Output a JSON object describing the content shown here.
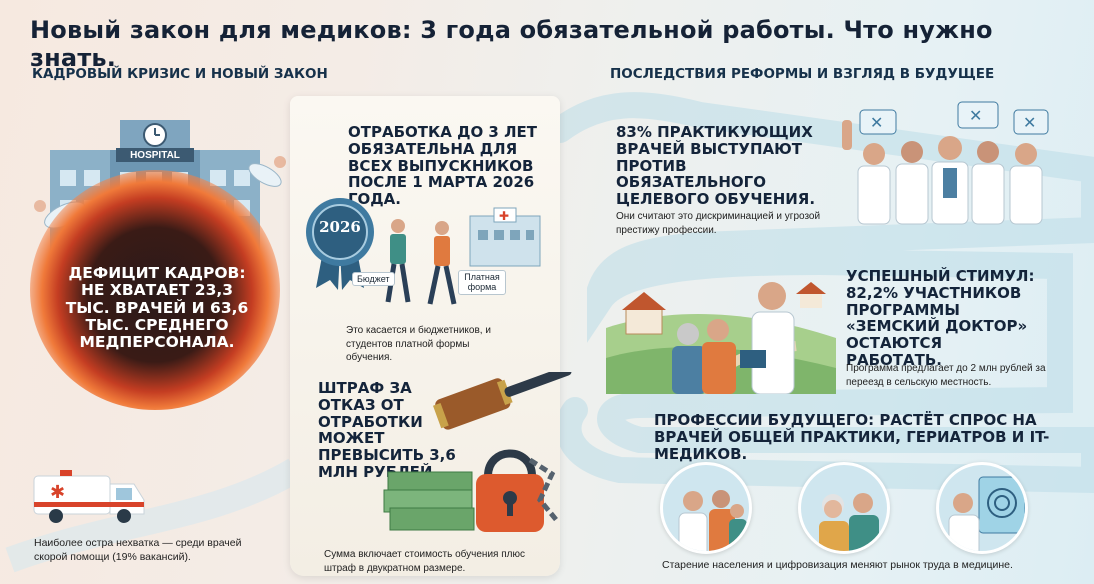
{
  "title": "Новый закон для медиков: 3 года обязательной работы. Что нужно знать.",
  "left_section": {
    "heading": "КАДРОВЫЙ КРИЗИС И НОВЫЙ ЗАКОН",
    "hospital_sign": "HOSPITAL",
    "deficit": "ДЕФИЦИТ КАДРОВ: НЕ ХВАТАЕТ 23,3 ТЫС. ВРАЧЕЙ И 63,6 ТЫС. СРЕДНЕГО МЕДПЕРСОНАЛА.",
    "ambulance_note": "Наиболее остра нехватка — среди врачей скорой помощи (19% вакансий)."
  },
  "center_section": {
    "obligation": "ОТРАБОТКА ДО 3 ЛЕТ ОБЯЗАТЕЛЬНА ДЛЯ ВСЕХ ВЫПУСКНИКОВ ПОСЛЕ 1 МАРТА 2026 ГОДА.",
    "year_badge": "2026",
    "label_budget": "Бюджет",
    "label_paid": "Платная форма",
    "applies_note": "Это касается и бюджетников, и студентов платной формы обучения.",
    "fine": "ШТРАФ ЗА ОТКАЗ ОТ ОТРАБОТКИ МОЖЕТ ПРЕВЫСИТЬ 3,6 МЛН РУБЛЕЙ.",
    "fine_note": "Сумма включает стоимость обучения плюс штраф в двукратном размере."
  },
  "right_section": {
    "heading": "ПОСЛЕДСТВИЯ РЕФОРМЫ И ВЗГЛЯД В БУДУЩЕЕ",
    "opposition": "83% ПРАКТИКУЮЩИХ ВРАЧЕЙ ВЫСТУПАЮТ ПРОТИВ ОБЯЗАТЕЛЬНОГО ЦЕЛЕВОГО ОБУЧЕНИЯ.",
    "opposition_note": "Они считают это дискриминацией и угрозой престижу профессии.",
    "stimulus": "УСПЕШНЫЙ СТИМУЛ: 82,2% УЧАСТНИКОВ ПРОГРАММЫ «ЗЕМСКИЙ ДОКТОР» ОСТАЮТСЯ РАБОТАТЬ.",
    "stimulus_note": "Программа предлагает до 2 млн рублей за переезд в сельскую местность.",
    "future": "ПРОФЕССИИ БУДУЩЕГО: РАСТЁТ СПРОС НА ВРАЧЕЙ ОБЩЕЙ ПРАКТИКИ, ГЕРИАТРОВ И IT-МЕДИКОВ.",
    "future_note": "Старение населения и цифровизация меняют рынок труда в медицине."
  },
  "colors": {
    "dark_navy": "#14243a",
    "accent_red": "#d8432a",
    "teal": "#3f8fa6",
    "ribbon": "#5a9db6"
  }
}
